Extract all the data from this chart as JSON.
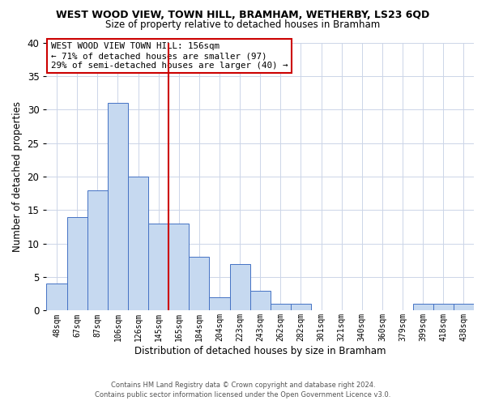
{
  "title": "WEST WOOD VIEW, TOWN HILL, BRAMHAM, WETHERBY, LS23 6QD",
  "subtitle": "Size of property relative to detached houses in Bramham",
  "xlabel": "Distribution of detached houses by size in Bramham",
  "ylabel": "Number of detached properties",
  "bar_labels": [
    "48sqm",
    "67sqm",
    "87sqm",
    "106sqm",
    "126sqm",
    "145sqm",
    "165sqm",
    "184sqm",
    "204sqm",
    "223sqm",
    "243sqm",
    "262sqm",
    "282sqm",
    "301sqm",
    "321sqm",
    "340sqm",
    "360sqm",
    "379sqm",
    "399sqm",
    "418sqm",
    "438sqm"
  ],
  "bar_heights": [
    4,
    14,
    18,
    31,
    20,
    13,
    13,
    8,
    2,
    7,
    3,
    1,
    1,
    0,
    0,
    0,
    0,
    0,
    1,
    1,
    1
  ],
  "bar_color": "#c6d9f0",
  "bar_edge_color": "#4472c4",
  "vline_x": 6,
  "vline_color": "#cc0000",
  "ylim": [
    0,
    40
  ],
  "yticks": [
    0,
    5,
    10,
    15,
    20,
    25,
    30,
    35,
    40
  ],
  "annotation_title": "WEST WOOD VIEW TOWN HILL: 156sqm",
  "annotation_line1": "← 71% of detached houses are smaller (97)",
  "annotation_line2": "29% of semi-detached houses are larger (40) →",
  "annotation_box_color": "#ffffff",
  "annotation_box_edge": "#cc0000",
  "footer1": "Contains HM Land Registry data © Crown copyright and database right 2024.",
  "footer2": "Contains public sector information licensed under the Open Government Licence v3.0.",
  "background_color": "#ffffff",
  "grid_color": "#ccd5e8"
}
